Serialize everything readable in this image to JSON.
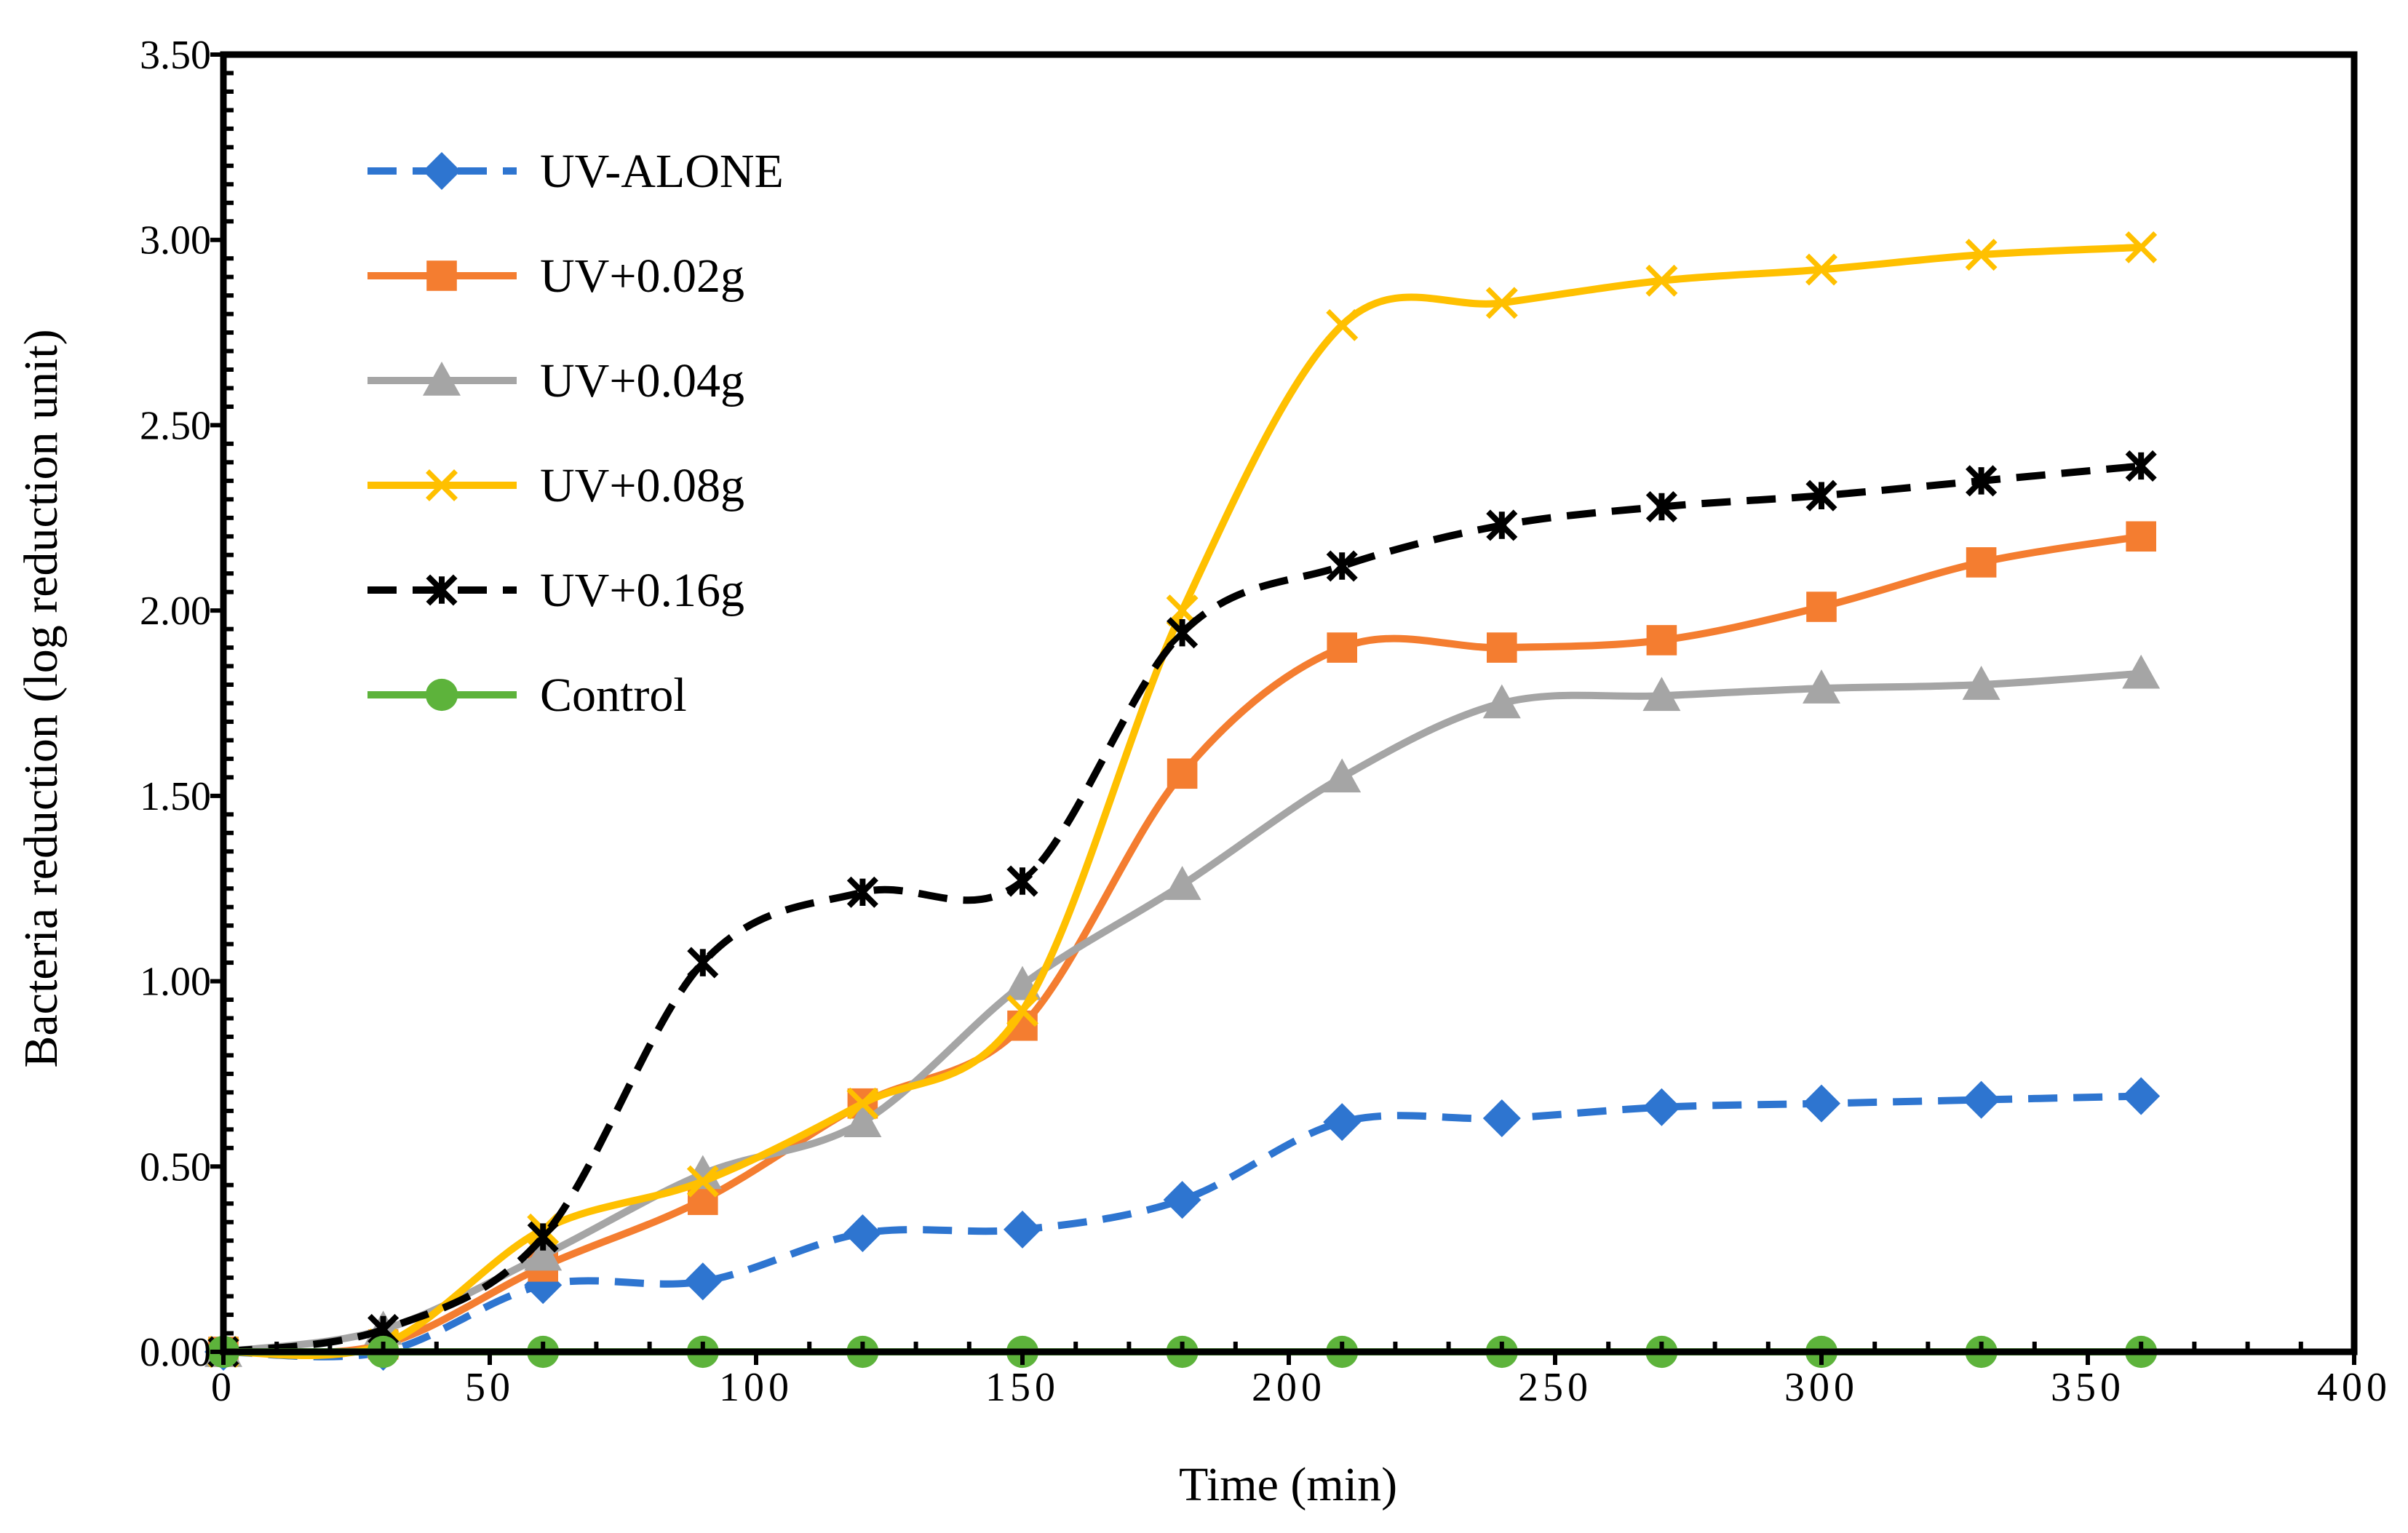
{
  "chart_data": {
    "type": "line",
    "title": "",
    "xlabel": "Time (min)",
    "ylabel": "Bacteria reduction (log reduction unit)",
    "xlim": [
      0,
      400
    ],
    "ylim": [
      0,
      3.5
    ],
    "x_ticks": [
      "0",
      "50",
      "100",
      "150",
      "200",
      "250",
      "300",
      "350",
      "400"
    ],
    "y_ticks": [
      "0.00",
      "0.50",
      "1.00",
      "1.50",
      "2.00",
      "2.50",
      "3.00",
      "3.50"
    ],
    "grid": false,
    "legend_position": "top-left",
    "x": [
      0,
      30,
      60,
      90,
      120,
      150,
      180,
      210,
      240,
      270,
      300,
      330,
      360
    ],
    "series": [
      {
        "name": "UV-ALONE",
        "color": "#2E75D0",
        "marker": "diamond",
        "line_style": "dashed",
        "values": [
          0,
          0,
          0.18,
          0.19,
          0.32,
          0.33,
          0.41,
          0.62,
          0.63,
          0.66,
          0.67,
          0.68,
          0.69
        ]
      },
      {
        "name": "UV+0.02g",
        "color": "#F47D30",
        "marker": "square",
        "line_style": "solid",
        "values": [
          0,
          0.02,
          0.23,
          0.41,
          0.67,
          0.88,
          1.56,
          1.9,
          1.9,
          1.92,
          2.01,
          2.13,
          2.2
        ]
      },
      {
        "name": "UV+0.04g",
        "color": "#A5A5A5",
        "marker": "triangle",
        "line_style": "solid",
        "values": [
          0,
          0.06,
          0.26,
          0.48,
          0.62,
          0.99,
          1.26,
          1.55,
          1.75,
          1.77,
          1.79,
          1.8,
          1.83
        ]
      },
      {
        "name": "UV+0.08g",
        "color": "#FFC000",
        "marker": "x",
        "line_style": "solid",
        "values": [
          0,
          0.02,
          0.33,
          0.46,
          0.67,
          0.92,
          2.0,
          2.77,
          2.83,
          2.89,
          2.92,
          2.96,
          2.98
        ]
      },
      {
        "name": "UV+0.16g",
        "color": "#000000",
        "marker": "asterisk",
        "line_style": "dashed",
        "values": [
          0,
          0.06,
          0.31,
          1.05,
          1.24,
          1.27,
          1.94,
          2.12,
          2.23,
          2.28,
          2.31,
          2.35,
          2.39
        ]
      },
      {
        "name": "Control",
        "color": "#5DB33B",
        "marker": "circle",
        "line_style": "solid",
        "values": [
          0,
          0,
          0,
          0,
          0,
          0,
          0,
          0,
          0,
          0,
          0,
          0,
          0
        ]
      }
    ]
  }
}
